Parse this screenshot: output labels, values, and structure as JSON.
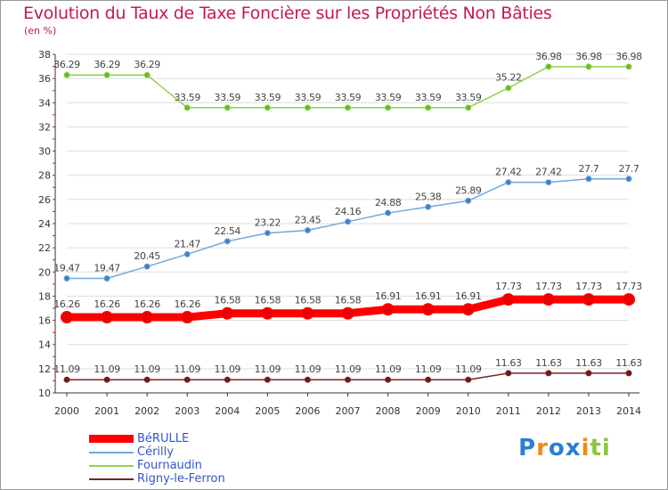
{
  "header": {
    "title": "Evolution du Taux de Taxe Foncière sur les Propriétés Non Bâties",
    "unit": "(en %)"
  },
  "logo": {
    "text": "Proxiti",
    "letters": [
      "P",
      "r",
      "o",
      "x",
      "i",
      "t",
      "i"
    ],
    "colors": [
      "#2a7fd4",
      "#f08a1c",
      "#2a7fd4",
      "#2a7fd4",
      "#f08a1c",
      "#8cc63f",
      "#8cc63f"
    ]
  },
  "chart_data": {
    "type": "line",
    "title": "Evolution du Taux de Taxe Foncière sur les Propriétés Non Bâties",
    "ylabel": "(en %)",
    "xlabel": "",
    "ylim": [
      10,
      38
    ],
    "yticks": [
      10,
      12,
      14,
      16,
      18,
      20,
      22,
      24,
      26,
      28,
      30,
      32,
      34,
      36,
      38
    ],
    "grid": "horizontal",
    "legend_position": "bottom-left",
    "categories": [
      "2000",
      "2001",
      "2002",
      "2003",
      "2004",
      "2005",
      "2006",
      "2007",
      "2008",
      "2009",
      "2010",
      "2011",
      "2012",
      "2013",
      "2014"
    ],
    "series": [
      {
        "name": "Fournaudin",
        "key": "fournaudin",
        "color": "#8fd14f",
        "marker_color": "#66bb22",
        "values": [
          36.29,
          36.29,
          36.29,
          33.59,
          33.59,
          33.59,
          33.59,
          33.59,
          33.59,
          33.59,
          33.59,
          35.22,
          36.98,
          36.98,
          36.98
        ],
        "labels": [
          "36.29",
          "36.29",
          "36.29",
          "33.59",
          "33.59",
          "33.59",
          "33.59",
          "33.59",
          "33.59",
          "33.59",
          "33.59",
          "35.22",
          "36.98",
          "36.98",
          "36.98"
        ]
      },
      {
        "name": "Cérilly",
        "key": "cerilly",
        "color": "#6fa8dc",
        "marker_color": "#3d7fc4",
        "values": [
          19.47,
          19.47,
          20.45,
          21.47,
          22.54,
          23.22,
          23.45,
          24.16,
          24.88,
          25.38,
          25.89,
          27.42,
          27.42,
          27.7,
          27.7
        ],
        "labels": [
          "19.47",
          "19.47",
          "20.45",
          "21.47",
          "22.54",
          "23.22",
          "23.45",
          "24.16",
          "24.88",
          "25.38",
          "25.89",
          "27.42",
          "27.42",
          "27.7",
          "27.7"
        ]
      },
      {
        "name": "BéRULLE",
        "key": "berulle",
        "color": "#ff0000",
        "marker_color": "#ee0000",
        "values": [
          16.26,
          16.26,
          16.26,
          16.26,
          16.58,
          16.58,
          16.58,
          16.58,
          16.91,
          16.91,
          16.91,
          17.73,
          17.73,
          17.73,
          17.73
        ],
        "labels": [
          "16.26",
          "16.26",
          "16.26",
          "16.26",
          "16.58",
          "16.58",
          "16.58",
          "16.58",
          "16.91",
          "16.91",
          "16.91",
          "17.73",
          "17.73",
          "17.73",
          "17.73"
        ]
      },
      {
        "name": "Rigny-le-Ferron",
        "key": "rigny",
        "color": "#7b2525",
        "marker_color": "#6b1a1a",
        "values": [
          11.09,
          11.09,
          11.09,
          11.09,
          11.09,
          11.09,
          11.09,
          11.09,
          11.09,
          11.09,
          11.09,
          11.63,
          11.63,
          11.63,
          11.63
        ],
        "labels": [
          "11.09",
          "11.09",
          "11.09",
          "11.09",
          "11.09",
          "11.09",
          "11.09",
          "11.09",
          "11.09",
          "11.09",
          "11.09",
          "11.63",
          "11.63",
          "11.63",
          "11.63"
        ]
      }
    ]
  },
  "legend": {
    "items": [
      {
        "label": "BéRULLE",
        "color": "#ff0000"
      },
      {
        "label": "Cérilly",
        "color": "#6fa8dc"
      },
      {
        "label": "Fournaudin",
        "color": "#8fd14f"
      },
      {
        "label": "Rigny-le-Ferron",
        "color": "#7b2525"
      }
    ]
  }
}
